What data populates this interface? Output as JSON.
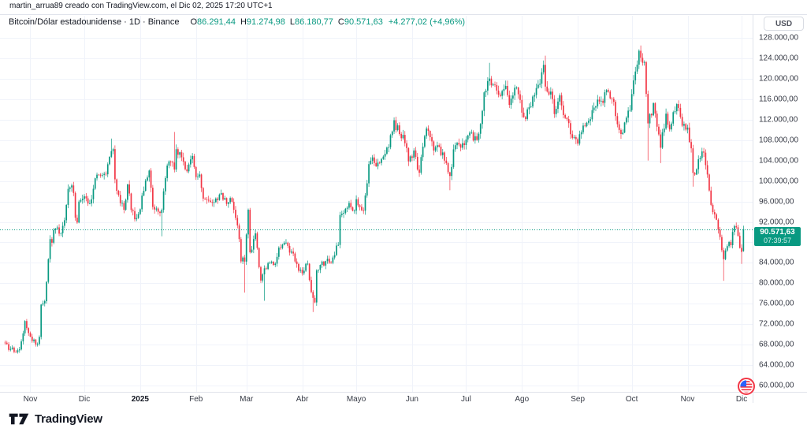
{
  "header": {
    "attribution": "martin_arrua89 creado con TradingView.com, el Dic 02, 2025 17:20 UTC+1"
  },
  "legend": {
    "title": "Bitcoin/Dólar estadounidense · 1D · Binance",
    "ohlc": [
      {
        "label": "O",
        "value": "86.291,44"
      },
      {
        "label": "H",
        "value": "91.274,98"
      },
      {
        "label": "L",
        "value": "86.180,77"
      },
      {
        "label": "C",
        "value": "90.571,63"
      }
    ],
    "change": "+4.277,02 (+4,96%)"
  },
  "toolbar": {
    "currency_button": "USD"
  },
  "price_badge": {
    "price": "90.571,63",
    "countdown": "07:39:57"
  },
  "watermark": {
    "brand": "TradingView"
  },
  "colors": {
    "up": "#089981",
    "down": "#F23645",
    "grid": "#F0F3FA",
    "border": "#E0E3EB",
    "axis_text": "#363A45",
    "badge_bg": "#089981",
    "background": "#FFFFFF"
  },
  "chart_data": {
    "type": "candlestick",
    "title": "Bitcoin/Dólar estadounidense",
    "exchange": "Binance",
    "interval": "1D",
    "currency": "USD",
    "grid": true,
    "legend_position": "top-left",
    "ylim": [
      58800,
      132300
    ],
    "days_total": 411,
    "price_line_value": 90571.63,
    "last_candle": {
      "open": 86291.44,
      "high": 91274.98,
      "low": 86180.77,
      "close": 90571.63
    },
    "price_ticks": [
      {
        "value": 128000,
        "label": "128.000,00"
      },
      {
        "value": 124000,
        "label": "124.000,00"
      },
      {
        "value": 120000,
        "label": "120.000,00"
      },
      {
        "value": 116000,
        "label": "116.000,00"
      },
      {
        "value": 112000,
        "label": "112.000,00"
      },
      {
        "value": 108000,
        "label": "108.000,00"
      },
      {
        "value": 104000,
        "label": "104.000,00"
      },
      {
        "value": 100000,
        "label": "100.000,00"
      },
      {
        "value": 96000,
        "label": "96.000,00"
      },
      {
        "value": 92000,
        "label": "92.000,00"
      },
      {
        "value": 88000,
        "label": "88.000,00"
      },
      {
        "value": 84000,
        "label": "84.000,00"
      },
      {
        "value": 80000,
        "label": "80.000,00"
      },
      {
        "value": 76000,
        "label": "76.000,00"
      },
      {
        "value": 72000,
        "label": "72.000,00"
      },
      {
        "value": 68000,
        "label": "68.000,00"
      },
      {
        "value": 64000,
        "label": "64.000,00"
      },
      {
        "value": 60000,
        "label": "60.000,00"
      }
    ],
    "time_ticks": [
      {
        "label": "Nov",
        "day": 14
      },
      {
        "label": "Dic",
        "day": 44
      },
      {
        "label": "2025",
        "day": 75,
        "bold": true
      },
      {
        "label": "Feb",
        "day": 106
      },
      {
        "label": "Mar",
        "day": 134
      },
      {
        "label": "Abr",
        "day": 165
      },
      {
        "label": "Mayo",
        "day": 195
      },
      {
        "label": "Jun",
        "day": 226
      },
      {
        "label": "Jul",
        "day": 256
      },
      {
        "label": "Ago",
        "day": 287
      },
      {
        "label": "Sep",
        "day": 318
      },
      {
        "label": "Oct",
        "day": 348
      },
      {
        "label": "Nov",
        "day": 379
      },
      {
        "label": "Dic",
        "day": 409
      }
    ],
    "anchors": [
      [
        0,
        68400
      ],
      [
        2,
        67000
      ],
      [
        4,
        67400
      ],
      [
        6,
        66600
      ],
      [
        8,
        67000
      ],
      [
        11,
        72700
      ],
      [
        13,
        70200
      ],
      [
        14,
        69500
      ],
      [
        16,
        69000
      ],
      [
        17,
        68000
      ],
      [
        19,
        69400
      ],
      [
        20,
        75900
      ],
      [
        22,
        76500
      ],
      [
        23,
        80400
      ],
      [
        25,
        88700
      ],
      [
        26,
        87900
      ],
      [
        27,
        90400
      ],
      [
        29,
        91000
      ],
      [
        31,
        89800
      ],
      [
        33,
        92300
      ],
      [
        35,
        98400
      ],
      [
        36,
        98900
      ],
      [
        38,
        97700
      ],
      [
        39,
        93000
      ],
      [
        40,
        91900
      ],
      [
        41,
        95900
      ],
      [
        43,
        96400
      ],
      [
        44,
        97200
      ],
      [
        46,
        95800
      ],
      [
        48,
        96600
      ],
      [
        51,
        101200
      ],
      [
        54,
        101100
      ],
      [
        56,
        101400
      ],
      [
        59,
        106000
      ],
      [
        60,
        106100
      ],
      [
        61,
        100200
      ],
      [
        63,
        97400
      ],
      [
        66,
        94300
      ],
      [
        68,
        99300
      ],
      [
        70,
        94200
      ],
      [
        73,
        92600
      ],
      [
        75,
        94600
      ],
      [
        77,
        98200
      ],
      [
        80,
        102100
      ],
      [
        82,
        95000
      ],
      [
        84,
        94700
      ],
      [
        87,
        94500
      ],
      [
        89,
        100500
      ],
      [
        91,
        104000
      ],
      [
        94,
        102300
      ],
      [
        95,
        106100
      ],
      [
        98,
        104800
      ],
      [
        101,
        102100
      ],
      [
        104,
        104700
      ],
      [
        106,
        100600
      ],
      [
        108,
        101400
      ],
      [
        110,
        96600
      ],
      [
        112,
        96500
      ],
      [
        116,
        95800
      ],
      [
        119,
        97500
      ],
      [
        123,
        95700
      ],
      [
        126,
        96100
      ],
      [
        129,
        91400
      ],
      [
        130,
        88600
      ],
      [
        131,
        84300
      ],
      [
        133,
        84400
      ],
      [
        135,
        94300
      ],
      [
        136,
        86100
      ],
      [
        139,
        89900
      ],
      [
        142,
        80700
      ],
      [
        144,
        82900
      ],
      [
        147,
        84000
      ],
      [
        150,
        84000
      ],
      [
        152,
        86900
      ],
      [
        157,
        87500
      ],
      [
        161,
        84400
      ],
      [
        164,
        82500
      ],
      [
        166,
        82500
      ],
      [
        168,
        83800
      ],
      [
        170,
        78200
      ],
      [
        172,
        76300
      ],
      [
        173,
        82600
      ],
      [
        175,
        83700
      ],
      [
        178,
        84500
      ],
      [
        180,
        84000
      ],
      [
        185,
        87500
      ],
      [
        186,
        93400
      ],
      [
        189,
        94700
      ],
      [
        192,
        95000
      ],
      [
        194,
        94200
      ],
      [
        195,
        96500
      ],
      [
        199,
        94200
      ],
      [
        202,
        103200
      ],
      [
        204,
        104700
      ],
      [
        206,
        102800
      ],
      [
        208,
        103500
      ],
      [
        212,
        106400
      ],
      [
        215,
        109700
      ],
      [
        216,
        111700
      ],
      [
        219,
        109000
      ],
      [
        221,
        108900
      ],
      [
        224,
        103900
      ],
      [
        227,
        105900
      ],
      [
        230,
        101600
      ],
      [
        234,
        110200
      ],
      [
        236,
        108700
      ],
      [
        238,
        106100
      ],
      [
        241,
        106800
      ],
      [
        245,
        103300
      ],
      [
        247,
        100900
      ],
      [
        249,
        106000
      ],
      [
        252,
        107100
      ],
      [
        255,
        107200
      ],
      [
        258,
        109600
      ],
      [
        262,
        108200
      ],
      [
        264,
        111300
      ],
      [
        266,
        117500
      ],
      [
        269,
        119900
      ],
      [
        271,
        118700
      ],
      [
        273,
        117900
      ],
      [
        276,
        117400
      ],
      [
        278,
        118800
      ],
      [
        280,
        115100
      ],
      [
        283,
        118000
      ],
      [
        286,
        115800
      ],
      [
        287,
        113400
      ],
      [
        288,
        112500
      ],
      [
        292,
        114600
      ],
      [
        294,
        116700
      ],
      [
        297,
        118800
      ],
      [
        299,
        122800
      ],
      [
        300,
        118400
      ],
      [
        303,
        117400
      ],
      [
        305,
        112900
      ],
      [
        308,
        116900
      ],
      [
        310,
        113000
      ],
      [
        312,
        111900
      ],
      [
        315,
        108400
      ],
      [
        317,
        108200
      ],
      [
        318,
        107300
      ],
      [
        321,
        110700
      ],
      [
        325,
        112000
      ],
      [
        329,
        115900
      ],
      [
        331,
        115900
      ],
      [
        335,
        117500
      ],
      [
        338,
        115700
      ],
      [
        339,
        112800
      ],
      [
        342,
        109000
      ],
      [
        343,
        109300
      ],
      [
        347,
        114000
      ],
      [
        349,
        119500
      ],
      [
        352,
        125300
      ],
      [
        353,
        123900
      ],
      [
        355,
        123000
      ],
      [
        357,
        111400
      ],
      [
        360,
        115100
      ],
      [
        362,
        110800
      ],
      [
        364,
        106400
      ],
      [
        367,
        113200
      ],
      [
        369,
        110100
      ],
      [
        371,
        113500
      ],
      [
        374,
        114300
      ],
      [
        376,
        110600
      ],
      [
        378,
        110100
      ],
      [
        379,
        110500
      ],
      [
        381,
        106500
      ],
      [
        382,
        101500
      ],
      [
        384,
        102200
      ],
      [
        386,
        104500
      ],
      [
        388,
        105600
      ],
      [
        389,
        103000
      ],
      [
        391,
        98000
      ],
      [
        392,
        95500
      ],
      [
        395,
        92500
      ],
      [
        396,
        90500
      ],
      [
        398,
        86600
      ],
      [
        399,
        84600
      ],
      [
        402,
        88200
      ],
      [
        403,
        87300
      ],
      [
        404,
        90000
      ],
      [
        406,
        91000
      ],
      [
        408,
        87000
      ],
      [
        409,
        86300
      ],
      [
        410,
        90572
      ]
    ],
    "wick_events": [
      {
        "day": 59,
        "high": 108300
      },
      {
        "day": 87,
        "low": 89200
      },
      {
        "day": 94,
        "high": 109600
      },
      {
        "day": 133,
        "low": 78200
      },
      {
        "day": 144,
        "low": 76600
      },
      {
        "day": 171,
        "low": 74400
      },
      {
        "day": 216,
        "high": 112000
      },
      {
        "day": 247,
        "low": 98200
      },
      {
        "day": 269,
        "high": 123100
      },
      {
        "day": 300,
        "high": 124500
      },
      {
        "day": 353,
        "high": 126200
      },
      {
        "day": 357,
        "low": 104000
      },
      {
        "day": 364,
        "low": 103500
      },
      {
        "day": 382,
        "low": 98900
      },
      {
        "day": 399,
        "low": 80500
      },
      {
        "day": 409,
        "low": 83800
      }
    ]
  }
}
